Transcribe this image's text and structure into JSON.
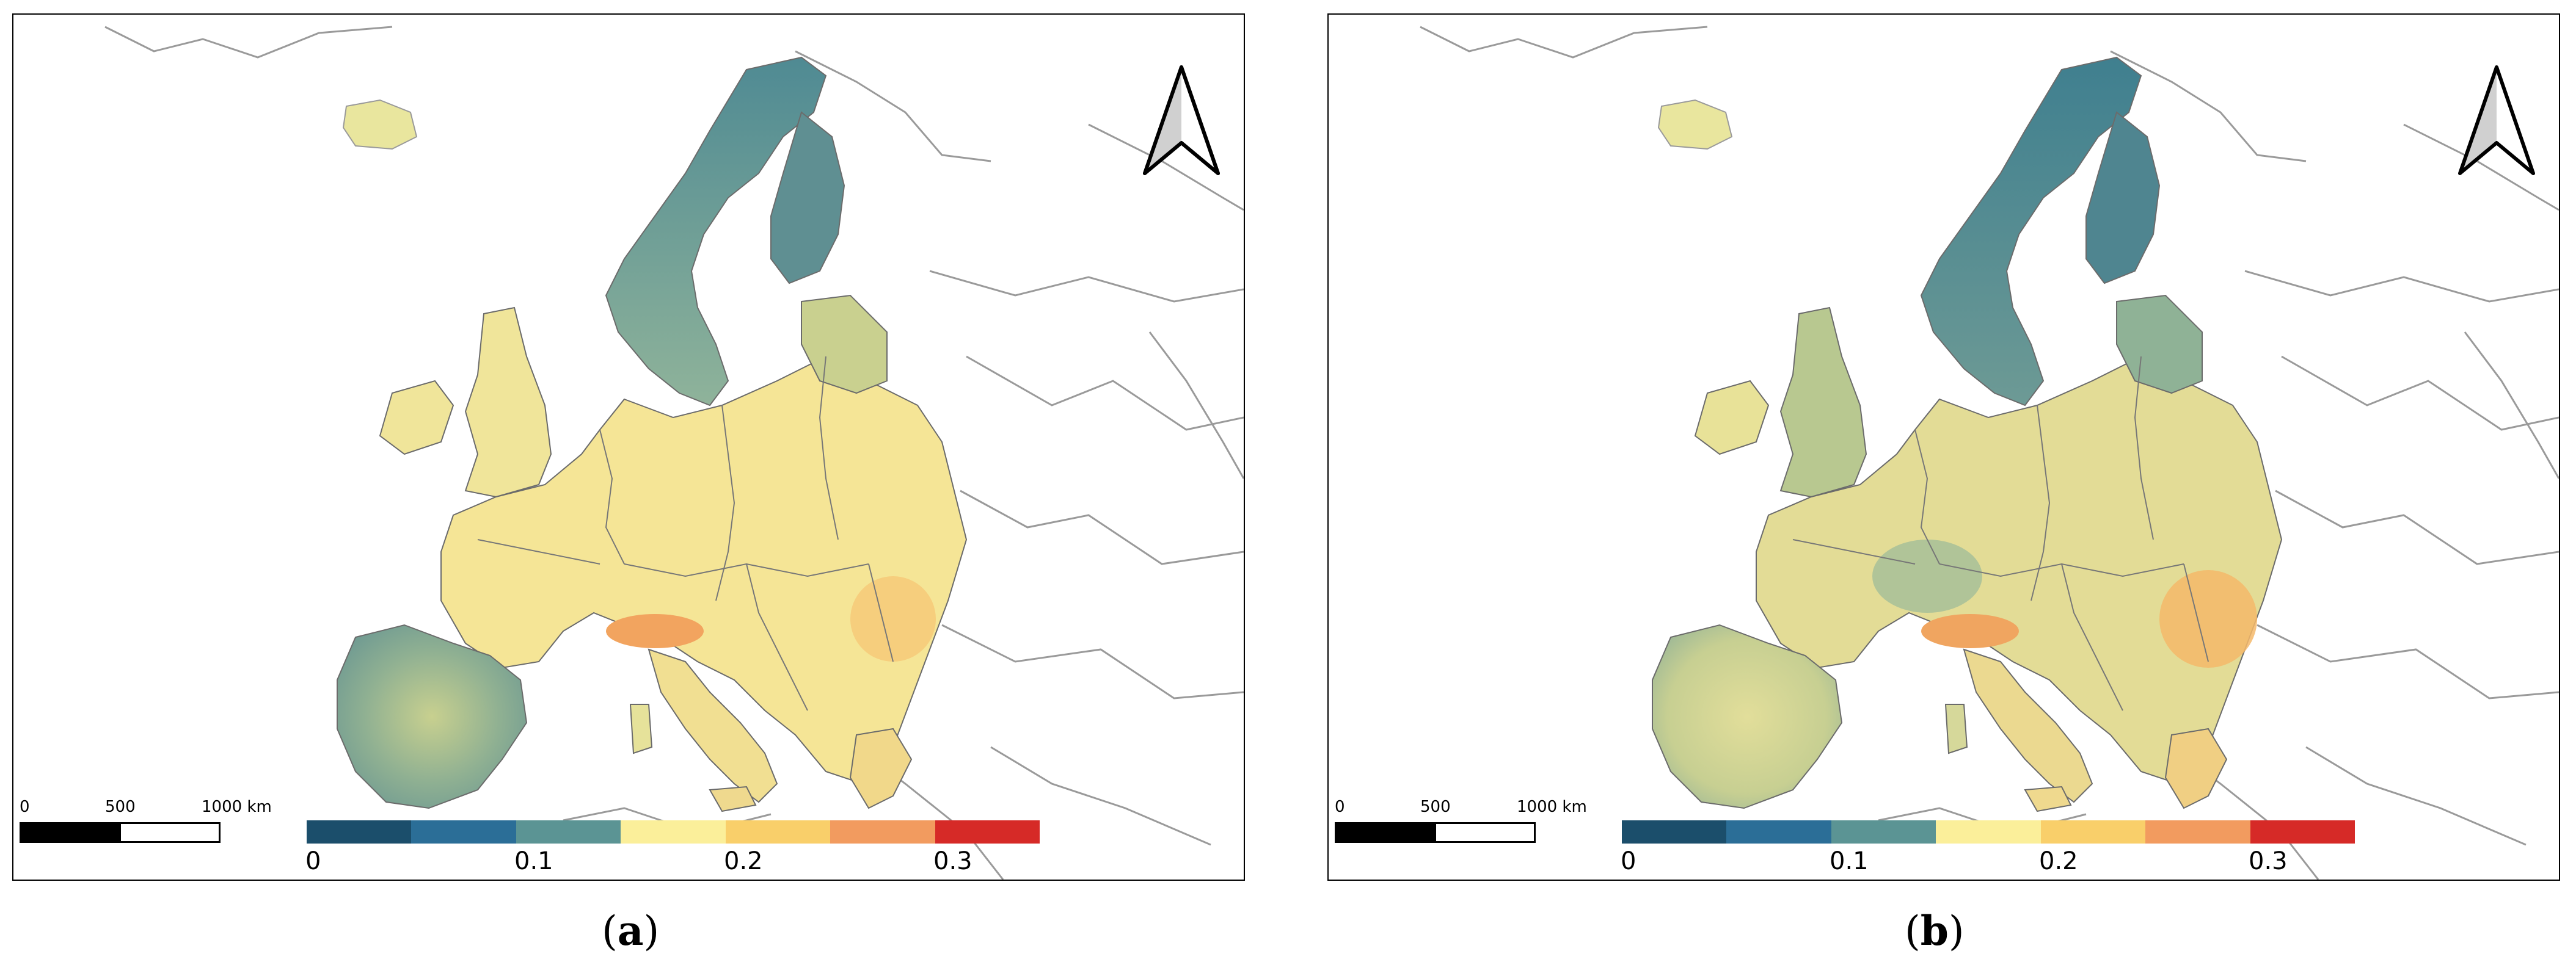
{
  "panels": [
    {
      "id": "a",
      "caption_open": "(",
      "caption_letter": "a",
      "caption_close": ")",
      "scale_bar": {
        "labels": [
          "0",
          "500",
          "1000 km"
        ]
      },
      "legend": {
        "colors": [
          "#1b4e6b",
          "#2b6e97",
          "#5b9494",
          "#fbef9a",
          "#f9cf6a",
          "#f29b5f",
          "#d62a27"
        ],
        "ticks": [
          "0",
          "0.1",
          "0.2",
          "0.3"
        ]
      },
      "north_arrow_icon": "north-arrow-icon"
    },
    {
      "id": "b",
      "caption_open": "(",
      "caption_letter": "b",
      "caption_close": ")",
      "scale_bar": {
        "labels": [
          "0",
          "500",
          "1000 km"
        ]
      },
      "legend": {
        "colors": [
          "#1b4e6b",
          "#2b6e97",
          "#5b9494",
          "#fbef9a",
          "#f9cf6a",
          "#f29b5f",
          "#d62a27"
        ],
        "ticks": [
          "0",
          "0.1",
          "0.2",
          "0.3"
        ]
      },
      "north_arrow_icon": "north-arrow-icon"
    }
  ]
}
